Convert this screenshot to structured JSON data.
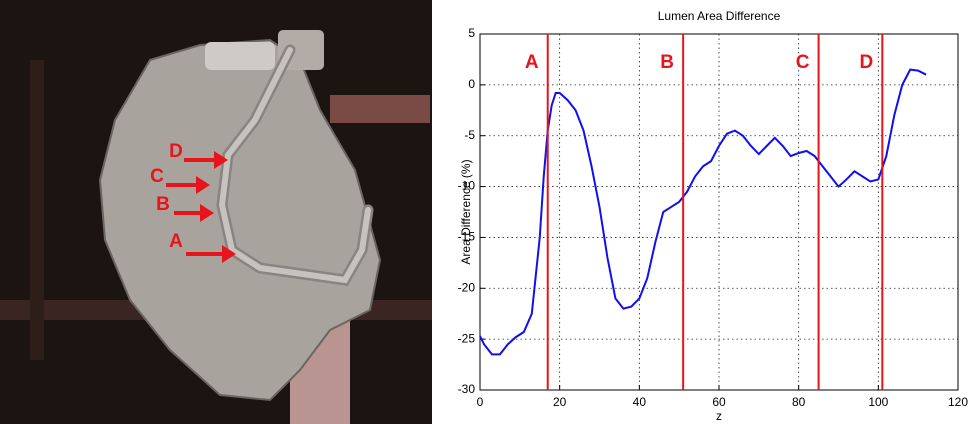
{
  "figure_labels": [
    "D",
    "C",
    "B",
    "A"
  ],
  "chart_data": {
    "type": "line",
    "title": "Lumen Area Difference",
    "x_label": "z",
    "y_label": "Area Difference (%)",
    "x": [
      0,
      1,
      3,
      5,
      7,
      9,
      11,
      13,
      15,
      16,
      17,
      18,
      19,
      20,
      22,
      24,
      26,
      28,
      30,
      32,
      34,
      36,
      38,
      40,
      42,
      44,
      46,
      48,
      50,
      52,
      54,
      56,
      58,
      60,
      62,
      64,
      66,
      68,
      70,
      72,
      74,
      76,
      78,
      80,
      82,
      84,
      86,
      88,
      90,
      92,
      94,
      96,
      98,
      100,
      102,
      104,
      106,
      108,
      110,
      112
    ],
    "series": [
      {
        "name": "Lumen area difference",
        "color": "#1010ee",
        "values": [
          -24.7,
          -25.5,
          -26.5,
          -26.5,
          -25.5,
          -24.8,
          -24.3,
          -22.5,
          -15,
          -9,
          -4.5,
          -2,
          -0.8,
          -0.8,
          -1.5,
          -2.5,
          -4.5,
          -8,
          -12,
          -17,
          -21,
          -22,
          -21.8,
          -21,
          -19,
          -15.5,
          -12.5,
          -12,
          -11.5,
          -10.5,
          -9,
          -8,
          -7.5,
          -6,
          -4.8,
          -4.5,
          -5,
          -6,
          -6.8,
          -6,
          -5.2,
          -6,
          -7,
          -6.7,
          -6.5,
          -7,
          -8,
          -9,
          -10,
          -9.3,
          -8.5,
          -9,
          -9.5,
          -9.3,
          -7,
          -3,
          0,
          1.5,
          1.4,
          1
        ]
      }
    ],
    "markers": {
      "x": [
        17,
        51,
        85,
        101
      ],
      "labels": [
        "A",
        "B",
        "C",
        "D"
      ],
      "color": "#e8141b"
    },
    "xlim": [
      0,
      120
    ],
    "xticks": [
      0,
      20,
      40,
      60,
      80,
      100,
      120
    ],
    "ylim": [
      -30,
      5
    ],
    "yticks": [
      -30,
      -25,
      -20,
      -15,
      -10,
      -5,
      0,
      5
    ],
    "grid": true
  }
}
